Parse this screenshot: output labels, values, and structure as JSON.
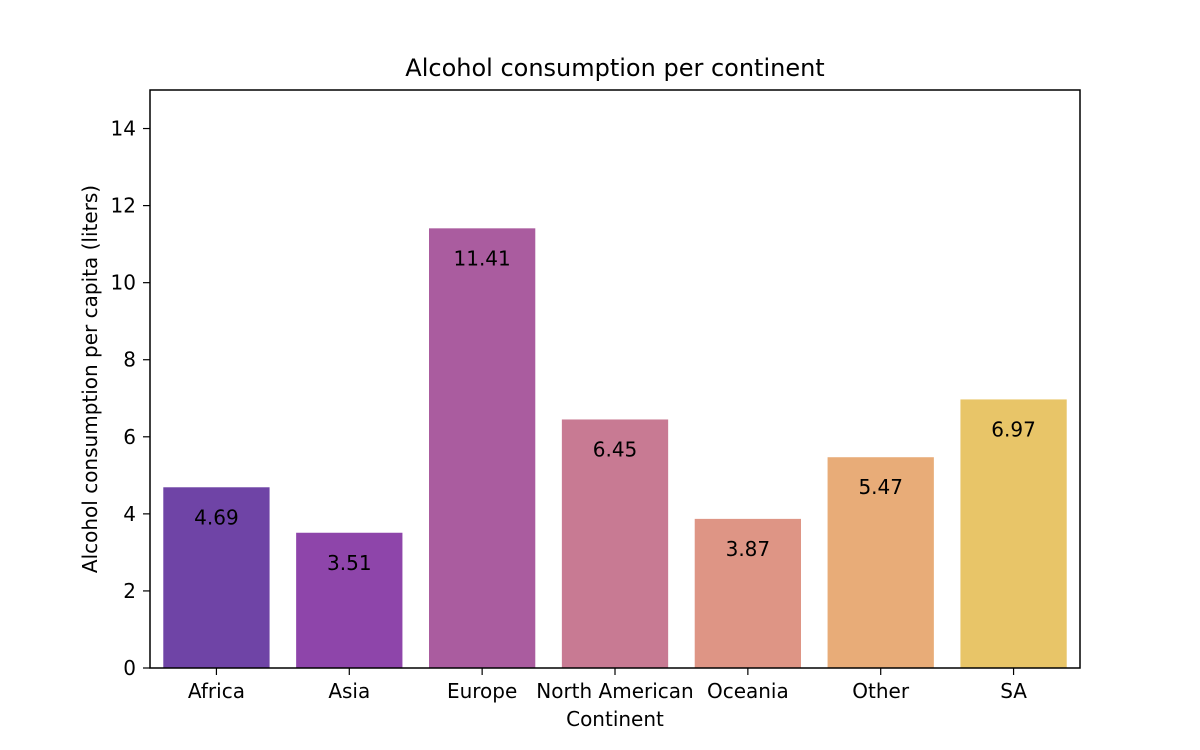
{
  "chart_data": {
    "type": "bar",
    "title": "Alcohol consumption per continent",
    "xlabel": "Continent",
    "ylabel": "Alcohol consumption per capita (liters)",
    "categories": [
      "Africa",
      "Asia",
      "Europe",
      "North American",
      "Oceania",
      "Other",
      "SA"
    ],
    "values": [
      4.69,
      3.51,
      11.41,
      6.45,
      3.87,
      5.47,
      6.97
    ],
    "value_labels": [
      "4.69",
      "3.51",
      "11.41",
      "6.45",
      "3.87",
      "5.47",
      "6.97"
    ],
    "colors": [
      "#6f44a6",
      "#8e45aa",
      "#aa5c9f",
      "#c87a93",
      "#de9585",
      "#e8ac78",
      "#e8c568"
    ],
    "ylim": [
      0,
      15
    ],
    "yticks": [
      0,
      2,
      4,
      6,
      8,
      10,
      12,
      14
    ],
    "grid": false,
    "legend": false
  }
}
